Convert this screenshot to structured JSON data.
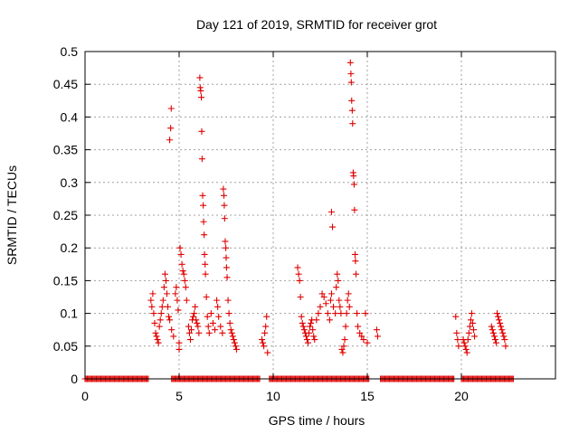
{
  "chart_data": {
    "type": "scatter",
    "title": "Day 121 of 2019, SRMTID for receiver grot",
    "xlabel": "GPS time / hours",
    "ylabel": "SRMTID / TECUs",
    "xlim": [
      0,
      25
    ],
    "ylim": [
      0,
      0.5
    ],
    "x_ticks": [
      0,
      5,
      10,
      15,
      20
    ],
    "y_ticks": [
      0,
      0.05,
      0.1,
      0.15,
      0.2,
      0.25,
      0.3,
      0.35,
      0.4,
      0.45,
      0.5
    ],
    "grid": true,
    "marker": "+",
    "colors": {
      "series": "#e00000",
      "grid": "#a0a0a0",
      "axis": "#000000"
    },
    "series": [
      {
        "name": "SRMTID",
        "points": [
          [
            3.5,
            0.12
          ],
          [
            3.55,
            0.11
          ],
          [
            3.6,
            0.13
          ],
          [
            3.65,
            0.1
          ],
          [
            3.7,
            0.085
          ],
          [
            3.75,
            0.07
          ],
          [
            3.8,
            0.065
          ],
          [
            3.85,
            0.06
          ],
          [
            3.9,
            0.055
          ],
          [
            3.95,
            0.08
          ],
          [
            4.0,
            0.09
          ],
          [
            4.05,
            0.1
          ],
          [
            4.1,
            0.11
          ],
          [
            4.15,
            0.12
          ],
          [
            4.2,
            0.14
          ],
          [
            4.25,
            0.16
          ],
          [
            4.3,
            0.15
          ],
          [
            4.35,
            0.13
          ],
          [
            4.4,
            0.11
          ],
          [
            4.45,
            0.095
          ],
          [
            4.5,
            0.09
          ],
          [
            4.5,
            0.365
          ],
          [
            4.55,
            0.383
          ],
          [
            4.58,
            0.413
          ],
          [
            4.6,
            0.075
          ],
          [
            4.7,
            0.065
          ],
          [
            4.8,
            0.13
          ],
          [
            4.85,
            0.14
          ],
          [
            4.9,
            0.12
          ],
          [
            4.95,
            0.105
          ],
          [
            5.0,
            0.055
          ],
          [
            5.0,
            0.045
          ],
          [
            5.05,
            0.2
          ],
          [
            5.1,
            0.19
          ],
          [
            5.15,
            0.175
          ],
          [
            5.2,
            0.165
          ],
          [
            5.25,
            0.16
          ],
          [
            5.3,
            0.15
          ],
          [
            5.35,
            0.14
          ],
          [
            5.4,
            0.12
          ],
          [
            5.5,
            0.08
          ],
          [
            5.55,
            0.07
          ],
          [
            5.6,
            0.06
          ],
          [
            5.65,
            0.075
          ],
          [
            5.7,
            0.09
          ],
          [
            5.75,
            0.095
          ],
          [
            5.8,
            0.1
          ],
          [
            5.85,
            0.11
          ],
          [
            5.9,
            0.09
          ],
          [
            5.95,
            0.085
          ],
          [
            6.0,
            0.08
          ],
          [
            6.05,
            0.07
          ],
          [
            6.1,
            0.46
          ],
          [
            6.12,
            0.445
          ],
          [
            6.15,
            0.44
          ],
          [
            6.18,
            0.43
          ],
          [
            6.2,
            0.378
          ],
          [
            6.22,
            0.336
          ],
          [
            6.25,
            0.28
          ],
          [
            6.28,
            0.265
          ],
          [
            6.3,
            0.24
          ],
          [
            6.33,
            0.22
          ],
          [
            6.35,
            0.19
          ],
          [
            6.38,
            0.175
          ],
          [
            6.4,
            0.16
          ],
          [
            6.45,
            0.125
          ],
          [
            6.5,
            0.095
          ],
          [
            6.55,
            0.08
          ],
          [
            6.6,
            0.07
          ],
          [
            6.7,
            0.1
          ],
          [
            6.8,
            0.085
          ],
          [
            6.9,
            0.075
          ],
          [
            7.0,
            0.12
          ],
          [
            7.05,
            0.11
          ],
          [
            7.1,
            0.095
          ],
          [
            7.2,
            0.08
          ],
          [
            7.3,
            0.07
          ],
          [
            7.35,
            0.29
          ],
          [
            7.38,
            0.28
          ],
          [
            7.4,
            0.265
          ],
          [
            7.42,
            0.245
          ],
          [
            7.45,
            0.21
          ],
          [
            7.48,
            0.2
          ],
          [
            7.5,
            0.185
          ],
          [
            7.52,
            0.17
          ],
          [
            7.55,
            0.155
          ],
          [
            7.6,
            0.12
          ],
          [
            7.65,
            0.1
          ],
          [
            7.7,
            0.085
          ],
          [
            7.75,
            0.075
          ],
          [
            7.8,
            0.07
          ],
          [
            7.85,
            0.065
          ],
          [
            7.9,
            0.06
          ],
          [
            7.95,
            0.055
          ],
          [
            8.0,
            0.05
          ],
          [
            8.05,
            0.045
          ],
          [
            9.4,
            0.06
          ],
          [
            9.45,
            0.055
          ],
          [
            9.5,
            0.05
          ],
          [
            9.55,
            0.07
          ],
          [
            9.6,
            0.08
          ],
          [
            9.65,
            0.095
          ],
          [
            9.7,
            0.04
          ],
          [
            11.3,
            0.17
          ],
          [
            11.35,
            0.16
          ],
          [
            11.4,
            0.15
          ],
          [
            11.45,
            0.125
          ],
          [
            11.5,
            0.095
          ],
          [
            11.55,
            0.085
          ],
          [
            11.6,
            0.08
          ],
          [
            11.65,
            0.075
          ],
          [
            11.7,
            0.07
          ],
          [
            11.75,
            0.065
          ],
          [
            11.8,
            0.06
          ],
          [
            11.85,
            0.055
          ],
          [
            11.9,
            0.07
          ],
          [
            11.95,
            0.08
          ],
          [
            12.0,
            0.085
          ],
          [
            12.05,
            0.09
          ],
          [
            12.1,
            0.075
          ],
          [
            12.15,
            0.065
          ],
          [
            12.2,
            0.06
          ],
          [
            12.3,
            0.09
          ],
          [
            12.4,
            0.1
          ],
          [
            12.5,
            0.11
          ],
          [
            12.6,
            0.13
          ],
          [
            12.7,
            0.125
          ],
          [
            12.8,
            0.115
          ],
          [
            12.9,
            0.1
          ],
          [
            13.0,
            0.09
          ],
          [
            13.05,
            0.12
          ],
          [
            13.1,
            0.13
          ],
          [
            13.1,
            0.255
          ],
          [
            13.15,
            0.232
          ],
          [
            13.2,
            0.11
          ],
          [
            13.3,
            0.1
          ],
          [
            13.35,
            0.14
          ],
          [
            13.4,
            0.16
          ],
          [
            13.45,
            0.15
          ],
          [
            13.5,
            0.12
          ],
          [
            13.55,
            0.11
          ],
          [
            13.6,
            0.1
          ],
          [
            13.65,
            0.045
          ],
          [
            13.7,
            0.04
          ],
          [
            13.75,
            0.05
          ],
          [
            13.8,
            0.06
          ],
          [
            13.85,
            0.08
          ],
          [
            13.9,
            0.1
          ],
          [
            13.95,
            0.12
          ],
          [
            14.0,
            0.13
          ],
          [
            14.05,
            0.11
          ],
          [
            14.1,
            0.483
          ],
          [
            14.13,
            0.466
          ],
          [
            14.15,
            0.453
          ],
          [
            14.17,
            0.425
          ],
          [
            14.2,
            0.41
          ],
          [
            14.22,
            0.39
          ],
          [
            14.25,
            0.315
          ],
          [
            14.27,
            0.31
          ],
          [
            14.3,
            0.297
          ],
          [
            14.32,
            0.258
          ],
          [
            14.35,
            0.19
          ],
          [
            14.37,
            0.18
          ],
          [
            14.4,
            0.16
          ],
          [
            14.45,
            0.1
          ],
          [
            14.5,
            0.08
          ],
          [
            14.6,
            0.07
          ],
          [
            14.7,
            0.065
          ],
          [
            14.8,
            0.06
          ],
          [
            14.9,
            0.1
          ],
          [
            15.0,
            0.055
          ],
          [
            15.5,
            0.075
          ],
          [
            15.55,
            0.065
          ],
          [
            19.7,
            0.095
          ],
          [
            19.75,
            0.07
          ],
          [
            19.8,
            0.06
          ],
          [
            19.85,
            0.05
          ],
          [
            20.1,
            0.06
          ],
          [
            20.15,
            0.055
          ],
          [
            20.2,
            0.05
          ],
          [
            20.25,
            0.045
          ],
          [
            20.3,
            0.04
          ],
          [
            20.35,
            0.06
          ],
          [
            20.4,
            0.07
          ],
          [
            20.45,
            0.08
          ],
          [
            20.5,
            0.09
          ],
          [
            20.55,
            0.1
          ],
          [
            20.6,
            0.085
          ],
          [
            20.65,
            0.075
          ],
          [
            20.7,
            0.065
          ],
          [
            21.6,
            0.08
          ],
          [
            21.65,
            0.075
          ],
          [
            21.7,
            0.07
          ],
          [
            21.75,
            0.065
          ],
          [
            21.8,
            0.06
          ],
          [
            21.85,
            0.055
          ],
          [
            21.9,
            0.1
          ],
          [
            21.95,
            0.095
          ],
          [
            22.0,
            0.09
          ],
          [
            22.05,
            0.085
          ],
          [
            22.1,
            0.08
          ],
          [
            22.15,
            0.075
          ],
          [
            22.2,
            0.07
          ],
          [
            22.25,
            0.065
          ],
          [
            22.3,
            0.06
          ],
          [
            22.35,
            0.05
          ]
        ],
        "zero_ranges": [
          [
            0,
            3.4
          ],
          [
            4.6,
            9.3
          ],
          [
            9.8,
            15.1
          ],
          [
            15.7,
            19.6
          ],
          [
            20.0,
            22.8
          ]
        ]
      }
    ]
  }
}
